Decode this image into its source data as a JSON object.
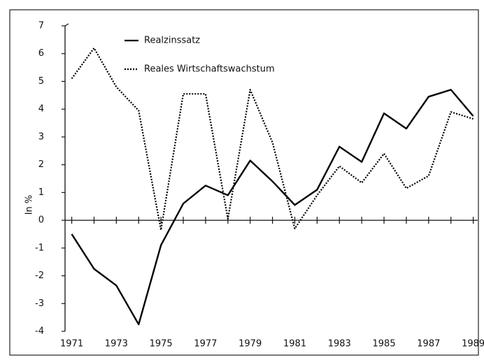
{
  "chart_data": {
    "type": "line",
    "ylabel": "In %",
    "x": [
      1971,
      1972,
      1973,
      1974,
      1975,
      1976,
      1977,
      1978,
      1979,
      1980,
      1981,
      1982,
      1983,
      1984,
      1985,
      1986,
      1987,
      1988,
      1989
    ],
    "series": [
      {
        "name": "Realzinssatz",
        "color": "#000000",
        "dash": "solid",
        "values": [
          -0.5,
          -1.75,
          -2.35,
          -3.75,
          -0.9,
          0.6,
          1.25,
          0.9,
          2.15,
          1.4,
          0.55,
          1.1,
          2.65,
          2.1,
          3.85,
          3.3,
          4.45,
          4.7,
          3.75
        ]
      },
      {
        "name": "Reales Wirtschaftswachstum",
        "color": "#000000",
        "dash": "dotted",
        "values": [
          5.1,
          6.2,
          4.8,
          3.95,
          -0.35,
          4.55,
          4.55,
          0.05,
          4.7,
          2.8,
          -0.3,
          0.9,
          1.95,
          1.35,
          2.4,
          1.15,
          1.6,
          3.9,
          3.65
        ]
      }
    ],
    "xlim": [
      1970.7,
      1989.2
    ],
    "xticks": [
      1971,
      1973,
      1975,
      1977,
      1979,
      1981,
      1983,
      1985,
      1987,
      1989
    ],
    "ylim": [
      -4,
      7
    ],
    "yticks": [
      -4,
      -3,
      -2,
      -1,
      0,
      1,
      2,
      3,
      4,
      5,
      6,
      7
    ]
  }
}
